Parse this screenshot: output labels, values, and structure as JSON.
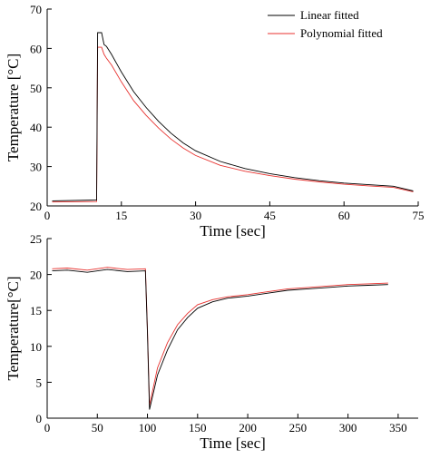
{
  "colors": {
    "linear": "#000000",
    "polynomial": "#e8322f"
  },
  "chart_data": [
    {
      "type": "line",
      "xlabel": "Time [sec]",
      "ylabel": "Temperature [°C]",
      "xlim": [
        0,
        75
      ],
      "ylim": [
        20,
        70
      ],
      "xticks": [
        0,
        15,
        30,
        45,
        60,
        75
      ],
      "yticks": [
        20,
        30,
        40,
        50,
        60,
        70
      ],
      "grid": false,
      "legend": "top-right",
      "series": [
        {
          "name": "Linear fitted",
          "color": "#000000",
          "x": [
            1.0,
            10.0,
            10.2,
            11.0,
            11.5,
            12.0,
            13.0,
            15.0,
            17.5,
            20.0,
            22.5,
            25.0,
            27.5,
            30.0,
            35.0,
            40.0,
            45.0,
            50.0,
            55.0,
            60.0,
            65.0,
            70.0,
            74.0
          ],
          "y": [
            21.3,
            21.5,
            64.0,
            64.0,
            61.0,
            60.5,
            58.5,
            54.0,
            49.0,
            45.0,
            41.5,
            38.5,
            36.0,
            34.0,
            31.3,
            29.5,
            28.2,
            27.2,
            26.4,
            25.8,
            25.4,
            25.0,
            23.8
          ]
        },
        {
          "name": "Polynomial fitted",
          "color": "#e8322f",
          "x": [
            1.0,
            10.0,
            10.2,
            11.0,
            11.5,
            12.0,
            13.0,
            15.0,
            17.5,
            20.0,
            22.5,
            25.0,
            27.5,
            30.0,
            35.0,
            40.0,
            45.0,
            50.0,
            55.0,
            60.0,
            65.0,
            70.0,
            74.0
          ],
          "y": [
            21.0,
            21.1,
            60.3,
            60.3,
            58.5,
            57.5,
            55.8,
            51.5,
            46.7,
            43.0,
            39.8,
            37.0,
            34.7,
            32.8,
            30.3,
            28.8,
            27.7,
            26.8,
            26.1,
            25.5,
            25.1,
            24.7,
            23.6
          ]
        }
      ]
    },
    {
      "type": "line",
      "xlabel": "Time [sec]",
      "ylabel": "Temperature[°C]",
      "xlim": [
        0,
        370
      ],
      "ylim": [
        0,
        25
      ],
      "xticks": [
        0,
        50,
        100,
        150,
        200,
        250,
        300,
        350
      ],
      "yticks": [
        0,
        5,
        10,
        15,
        20,
        25
      ],
      "grid": false,
      "series": [
        {
          "name": "Linear fitted",
          "color": "#000000",
          "x": [
            5,
            20,
            40,
            60,
            80,
            98,
            100,
            102,
            110,
            120,
            130,
            140,
            150,
            165,
            180,
            200,
            220,
            240,
            260,
            280,
            300,
            320,
            340
          ],
          "y": [
            20.5,
            20.6,
            20.3,
            20.7,
            20.4,
            20.5,
            12.0,
            1.2,
            6.0,
            9.5,
            12.3,
            14.0,
            15.3,
            16.2,
            16.7,
            17.0,
            17.4,
            17.8,
            18.0,
            18.2,
            18.4,
            18.5,
            18.6
          ]
        },
        {
          "name": "Polynomial fitted",
          "color": "#e8322f",
          "x": [
            5,
            20,
            40,
            60,
            80,
            98,
            100,
            102,
            110,
            120,
            130,
            140,
            150,
            165,
            180,
            200,
            220,
            240,
            260,
            280,
            300,
            320,
            340
          ],
          "y": [
            20.8,
            20.9,
            20.6,
            21.0,
            20.7,
            20.8,
            12.5,
            1.8,
            7.0,
            10.5,
            13.0,
            14.6,
            15.8,
            16.5,
            16.9,
            17.2,
            17.6,
            18.0,
            18.2,
            18.4,
            18.6,
            18.7,
            18.8
          ]
        }
      ]
    }
  ]
}
